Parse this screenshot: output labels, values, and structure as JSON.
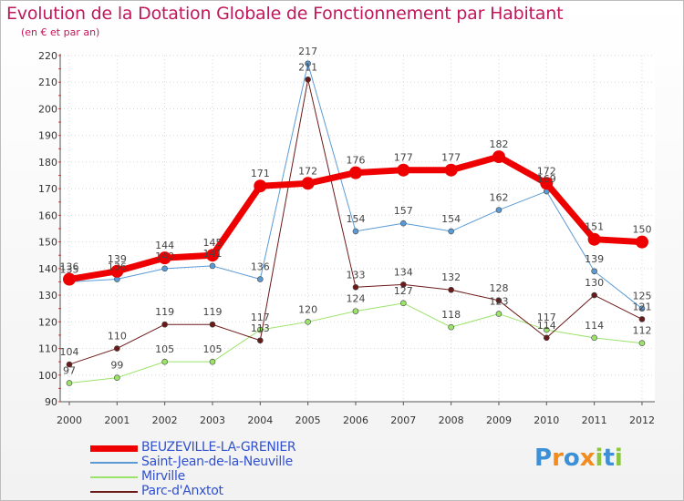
{
  "title": "Evolution de la Dotation Globale de Fonctionnement par Habitant",
  "subtitle": "(en € et par an)",
  "logo": {
    "text": [
      "P",
      "r",
      "o",
      "x",
      "i",
      "t",
      "i"
    ],
    "colors": [
      "#3d8fd6",
      "#f28c1e",
      "#3d8fd6",
      "#f28c1e",
      "#8cc63f",
      "#3d8fd6",
      "#8cc63f"
    ]
  },
  "chart_data": {
    "type": "line",
    "title": "Evolution de la Dotation Globale de Fonctionnement par Habitant",
    "ylabel": "(en € et par an)",
    "ylim": [
      90,
      220
    ],
    "yticks": [
      90,
      100,
      110,
      120,
      130,
      140,
      150,
      160,
      170,
      180,
      190,
      200,
      210,
      220
    ],
    "categories": [
      "2000",
      "2001",
      "2002",
      "2003",
      "2004",
      "2005",
      "2006",
      "2007",
      "2008",
      "2009",
      "2010",
      "2011",
      "2012"
    ],
    "series": [
      {
        "name": "BEUZEVILLE-LA-GRENIER",
        "color": "#ee0000",
        "width": 7,
        "marker": 7,
        "values": [
          136,
          139,
          144,
          145,
          171,
          172,
          176,
          177,
          177,
          182,
          172,
          151,
          150
        ]
      },
      {
        "name": "Saint-Jean-de-la-Neuville",
        "color": "#5b9bd5",
        "width": 1,
        "marker": 3,
        "values": [
          135,
          136,
          140,
          141,
          136,
          217,
          154,
          157,
          154,
          162,
          169,
          139,
          125
        ]
      },
      {
        "name": "Mirville",
        "color": "#9be36a",
        "width": 1,
        "marker": 3,
        "values": [
          97,
          99,
          105,
          105,
          117,
          120,
          124,
          127,
          118,
          123,
          117,
          114,
          112
        ]
      },
      {
        "name": "Parc-d'Anxtot",
        "color": "#6b1a1a",
        "width": 1,
        "marker": 3,
        "values": [
          104,
          110,
          119,
          119,
          113,
          211,
          133,
          134,
          132,
          128,
          114,
          130,
          121
        ]
      }
    ]
  }
}
